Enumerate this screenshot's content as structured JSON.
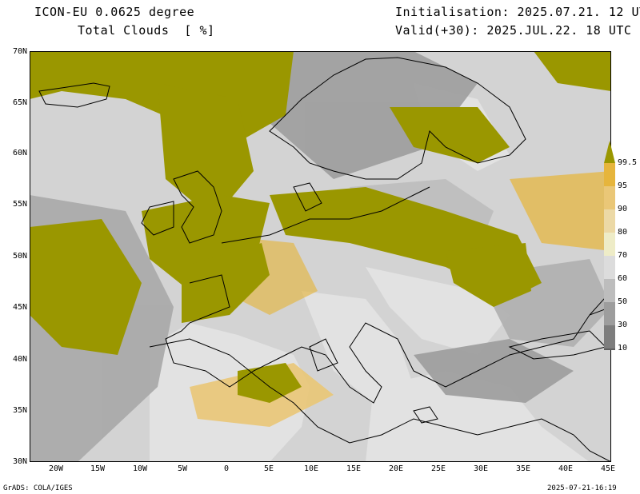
{
  "header": {
    "model": "ICON-EU 0.0625 degree",
    "variable": "Total Clouds  [ %]",
    "init": "Initialisation: 2025.07.21. 12 UTC",
    "valid": "Valid(+30): 2025.JUL.22. 18 UTC"
  },
  "axes": {
    "lat_labels": [
      "70N",
      "65N",
      "60N",
      "55N",
      "50N",
      "45N",
      "40N",
      "35N",
      "30N"
    ],
    "lon_labels": [
      "20W",
      "15W",
      "10W",
      "5W",
      "0",
      "5E",
      "10E",
      "15E",
      "20E",
      "25E",
      "30E",
      "35E",
      "40E",
      "45E"
    ]
  },
  "colorbar": {
    "labels": [
      "99.5",
      "95",
      "90",
      "80",
      "70",
      "60",
      "50",
      "30",
      "10"
    ],
    "colors": [
      "#9a9700",
      "#e6b53c",
      "#eac777",
      "#ecd9a6",
      "#eeecc7",
      "#dcdcdc",
      "#bdbdbd",
      "#9d9d9d",
      "#7d7d7d",
      "#5e5e5e"
    ]
  },
  "colors": {
    "full_cloud": "#9a9700",
    "land_clear": "#e2e2e2",
    "sea_clear": "#d3d3d3"
  },
  "footer": {
    "left": "GrADS: COLA/IGES",
    "right": "2025-07-21-16:19"
  }
}
